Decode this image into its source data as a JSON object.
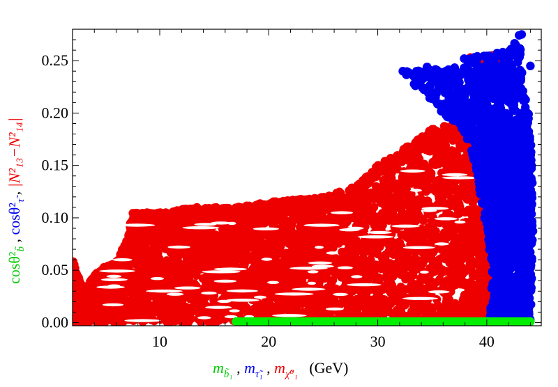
{
  "chart_data": {
    "type": "scatter",
    "title": "",
    "xlim": [
      2,
      45
    ],
    "ylim": [
      -0.003,
      0.28
    ],
    "x_ticks": [
      10,
      20,
      30,
      40
    ],
    "x_tick_labels": [
      "10",
      "20",
      "30",
      "40"
    ],
    "y_ticks": [
      0.0,
      0.05,
      0.1,
      0.15,
      0.2,
      0.25
    ],
    "y_tick_labels": [
      "0.00",
      "0.05",
      "0.10",
      "0.15",
      "0.20",
      "0.25"
    ],
    "grid": false,
    "legend": "none",
    "xlabel": {
      "parts": [
        {
          "text": "m",
          "sub": "b̃₁",
          "color": "#00cc00"
        },
        {
          "text": " , ",
          "color": "#000000"
        },
        {
          "text": "m",
          "sub": "τ̃₁",
          "color": "#0000ee"
        },
        {
          "text": " , ",
          "color": "#000000"
        },
        {
          "text": "m",
          "sub": "χ̃⁰₁",
          "color": "#ee0000"
        },
        {
          "text": "   (GeV)",
          "color": "#000000"
        }
      ]
    },
    "ylabel": {
      "parts": [
        {
          "text": "cosθ²",
          "sub": "b̃",
          "color": "#00cc00"
        },
        {
          "text": " , ",
          "color": "#000000"
        },
        {
          "text": "cosθ²",
          "sub": "τ̃",
          "color": "#0000ee"
        },
        {
          "text": " , ",
          "color": "#000000"
        },
        {
          "text": "|N²₁₃−N²₁₄|",
          "color": "#ee0000"
        }
      ]
    },
    "series": [
      {
        "color": "#00ee00",
        "kind": "band",
        "x_range": [
          17,
          44
        ],
        "y": 0.001
      },
      {
        "color": "#ee0000",
        "kind": "region",
        "upper_envelope": [
          [
            2,
            0.06
          ],
          [
            3,
            0.03
          ],
          [
            4,
            0.045
          ],
          [
            5,
            0.055
          ],
          [
            6,
            0.058
          ],
          [
            7,
            0.08
          ],
          [
            7.5,
            0.105
          ],
          [
            10,
            0.105
          ],
          [
            13,
            0.11
          ],
          [
            17,
            0.11
          ],
          [
            20,
            0.115
          ],
          [
            25,
            0.12
          ],
          [
            28,
            0.13
          ],
          [
            30,
            0.15
          ],
          [
            33,
            0.17
          ],
          [
            35,
            0.185
          ],
          [
            37,
            0.19
          ],
          [
            38,
            0.175
          ],
          [
            40,
            0.12
          ],
          [
            40.3,
            0.0
          ]
        ],
        "top_isolated_points": [
          [
            38.5,
            0.253
          ],
          [
            39,
            0.24
          ],
          [
            39.5,
            0.25
          ],
          [
            40,
            0.225
          ],
          [
            40.5,
            0.255
          ],
          [
            41,
            0.248
          ]
        ]
      },
      {
        "color": "#0000ee",
        "kind": "region",
        "boundary": [
          [
            32,
            0.24
          ],
          [
            33,
            0.24
          ],
          [
            34.5,
            0.245
          ],
          [
            36,
            0.24
          ],
          [
            38,
            0.255
          ],
          [
            40,
            0.255
          ],
          [
            42,
            0.26
          ],
          [
            43,
            0.275
          ],
          [
            43.5,
            0.22
          ],
          [
            44,
            0.19
          ],
          [
            44.3,
            0.1
          ],
          [
            44,
            0.0
          ],
          [
            40.3,
            0.0
          ],
          [
            40.5,
            0.05
          ],
          [
            39,
            0.15
          ],
          [
            38,
            0.18
          ],
          [
            36,
            0.2
          ],
          [
            34,
            0.22
          ]
        ]
      }
    ]
  }
}
